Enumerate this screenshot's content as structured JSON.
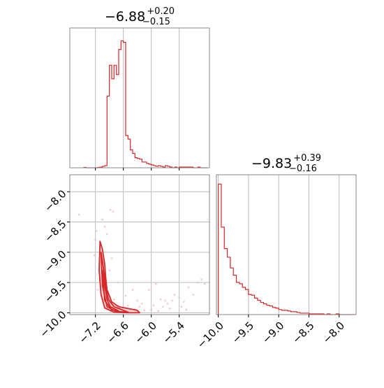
{
  "colors": {
    "series": "#d62728",
    "scatter": "#f4b6b7",
    "contour_fill": "#f7c9ca",
    "grid": "#bdbdbd",
    "frame": "#888888"
  },
  "chart_data": [
    {
      "type": "histogram",
      "panel": "top-left",
      "title": {
        "value": "−6.88",
        "sup": "+0.20",
        "sub": "−0.15"
      },
      "xlim": [
        -7.75,
        -4.75
      ],
      "bin_edges": [
        -7.45,
        -7.4,
        -7.35,
        -7.3,
        -7.25,
        -7.2,
        -7.15,
        -7.1,
        -7.05,
        -7.0,
        -6.95,
        -6.9,
        -6.85,
        -6.8,
        -6.75,
        -6.7,
        -6.65,
        -6.6,
        -6.55,
        -6.5,
        -6.45,
        -6.4,
        -6.35,
        -6.3,
        -6.25,
        -6.2,
        -6.15,
        -6.1,
        -6.05,
        -6.0,
        -5.95,
        -5.9,
        -5.85,
        -5.8,
        -5.75,
        -5.7,
        -5.65,
        -5.6,
        -5.55,
        -5.5,
        -5.45,
        -5.4,
        -5.35,
        -5.3,
        -5.25,
        -5.2,
        -5.15,
        -5.1,
        -5.05,
        -5.0,
        -4.95,
        -4.9,
        -4.85,
        -4.8
      ],
      "counts": [
        0.5,
        0,
        0,
        0,
        0,
        0,
        0.5,
        1,
        2,
        3,
        100,
        143,
        124,
        143,
        130,
        165,
        177,
        175,
        45,
        40,
        25,
        20,
        14,
        13,
        12,
        8,
        8,
        6,
        5,
        4,
        3,
        2,
        3,
        2,
        1,
        3,
        2,
        1,
        0,
        1,
        0,
        1,
        1,
        1,
        1,
        1,
        1,
        0,
        0,
        1,
        0,
        0,
        0
      ],
      "ylim": [
        0,
        195
      ],
      "xticks": [
        -7.2,
        -6.6,
        -6.0,
        -5.4
      ],
      "grid": true
    },
    {
      "type": "scatter-contour",
      "panel": "bottom-left",
      "xlim": [
        -7.75,
        -4.75
      ],
      "ylim": [
        -10.03,
        -7.72
      ],
      "xticks": [
        -7.2,
        -6.6,
        -6.0,
        -5.4
      ],
      "xtick_labels": [
        "−7.2",
        "−6.6",
        "−6.0",
        "−5.4"
      ],
      "yticks": [
        -8.0,
        -8.5,
        -9.0,
        -9.5,
        -10.0
      ],
      "ytick_labels": [
        "−8.0",
        "−8.5",
        "−9.0",
        "−9.5",
        "−10.0"
      ],
      "scatter_points": [
        [
          -7.55,
          -8.38
        ],
        [
          -6.88,
          -8.3
        ],
        [
          -6.82,
          -8.33
        ],
        [
          -7.05,
          -8.46
        ],
        [
          -6.95,
          -8.7
        ],
        [
          -7.0,
          -8.58
        ],
        [
          -7.1,
          -8.9
        ],
        [
          -7.12,
          -9.2
        ],
        [
          -7.02,
          -9.45
        ],
        [
          -7.15,
          -9.62
        ],
        [
          -6.95,
          -9.7
        ],
        [
          -6.8,
          -9.78
        ],
        [
          -6.72,
          -9.5
        ],
        [
          -6.55,
          -9.72
        ],
        [
          -6.4,
          -9.62
        ],
        [
          -6.3,
          -9.8
        ],
        [
          -6.2,
          -9.85
        ],
        [
          -6.05,
          -9.62
        ],
        [
          -5.95,
          -9.88
        ],
        [
          -5.9,
          -9.52
        ],
        [
          -5.8,
          -9.78
        ],
        [
          -5.7,
          -9.8
        ],
        [
          -5.6,
          -9.93
        ],
        [
          -5.5,
          -9.7
        ],
        [
          -5.4,
          -9.75
        ],
        [
          -5.3,
          -9.82
        ],
        [
          -5.2,
          -9.58
        ],
        [
          -5.1,
          -9.7
        ],
        [
          -5.0,
          -9.5
        ],
        [
          -4.92,
          -9.45
        ],
        [
          -4.85,
          -9.52
        ],
        [
          -6.6,
          -9.92
        ],
        [
          -6.45,
          -9.96
        ],
        [
          -6.35,
          -9.94
        ],
        [
          -6.15,
          -9.96
        ],
        [
          -6.0,
          -9.95
        ],
        [
          -5.85,
          -9.97
        ],
        [
          -5.75,
          -9.9
        ],
        [
          -5.65,
          -9.85
        ],
        [
          -6.9,
          -9.3
        ],
        [
          -6.85,
          -9.1
        ],
        [
          -7.2,
          -8.8
        ],
        [
          -7.22,
          -9.05
        ],
        [
          -7.18,
          -8.65
        ],
        [
          -6.7,
          -9.88
        ],
        [
          -6.5,
          -9.88
        ],
        [
          -6.25,
          -9.9
        ],
        [
          -5.55,
          -9.8
        ],
        [
          -5.35,
          -9.9
        ],
        [
          -5.25,
          -9.95
        ]
      ],
      "contours": [
        {
          "level": "outer",
          "x": [
            -7.1,
            -7.05,
            -7.0,
            -6.98,
            -6.95,
            -6.85,
            -6.7,
            -6.5,
            -6.3,
            -6.25,
            -6.5,
            -6.8,
            -7.0,
            -7.08,
            -7.12,
            -7.1
          ],
          "y": [
            -8.82,
            -8.95,
            -9.2,
            -9.4,
            -9.62,
            -9.82,
            -9.9,
            -9.93,
            -9.96,
            -10.0,
            -10.0,
            -9.99,
            -9.92,
            -9.7,
            -9.3,
            -8.82
          ]
        },
        {
          "level": "mid",
          "x": [
            -7.08,
            -7.03,
            -6.98,
            -6.92,
            -6.8,
            -6.6,
            -6.5,
            -6.75,
            -6.95,
            -7.05,
            -7.08
          ],
          "y": [
            -9.0,
            -9.25,
            -9.55,
            -9.78,
            -9.9,
            -9.96,
            -9.99,
            -9.98,
            -9.9,
            -9.55,
            -9.0
          ]
        },
        {
          "level": "inner",
          "x": [
            -7.05,
            -7.0,
            -6.95,
            -6.88,
            -6.7,
            -6.85,
            -7.0,
            -7.05
          ],
          "y": [
            -9.3,
            -9.55,
            -9.78,
            -9.9,
            -9.97,
            -9.95,
            -9.8,
            -9.3
          ]
        }
      ]
    },
    {
      "type": "histogram",
      "panel": "bottom-right",
      "title": {
        "value": "−9.83",
        "sup": "+0.39",
        "sub": "−0.16"
      },
      "xlim": [
        -10.03,
        -7.72
      ],
      "bin_edges": [
        -10.0,
        -9.95,
        -9.9,
        -9.85,
        -9.8,
        -9.75,
        -9.7,
        -9.65,
        -9.6,
        -9.55,
        -9.5,
        -9.45,
        -9.4,
        -9.35,
        -9.3,
        -9.25,
        -9.2,
        -9.15,
        -9.1,
        -9.05,
        -9.0,
        -8.95,
        -8.9,
        -8.85,
        -8.8,
        -8.75,
        -8.7,
        -8.65,
        -8.6,
        -8.55,
        -8.5,
        -8.45,
        -8.4,
        -8.35,
        -8.3,
        -8.25,
        -8.2,
        -8.15,
        -8.1,
        -8.05,
        -8.0,
        -7.95,
        -7.9,
        -7.85,
        -7.8,
        -7.75
      ],
      "counts": [
        182,
        122,
        92,
        80,
        65,
        55,
        45,
        43,
        38,
        35,
        28,
        27,
        23,
        20,
        17,
        15,
        13,
        12,
        10,
        9,
        7,
        6,
        6,
        5,
        4,
        4,
        3,
        2,
        2,
        2,
        1,
        1,
        1,
        1,
        1,
        0,
        1,
        0,
        0,
        1,
        0,
        0,
        0,
        0,
        0
      ],
      "ylim": [
        0,
        195
      ],
      "xticks": [
        -10.0,
        -9.5,
        -9.0,
        -8.5,
        -8.0
      ],
      "xtick_labels": [
        "−10.0",
        "−9.5",
        "−9.0",
        "−8.5",
        "−8.0"
      ],
      "grid": true
    }
  ]
}
